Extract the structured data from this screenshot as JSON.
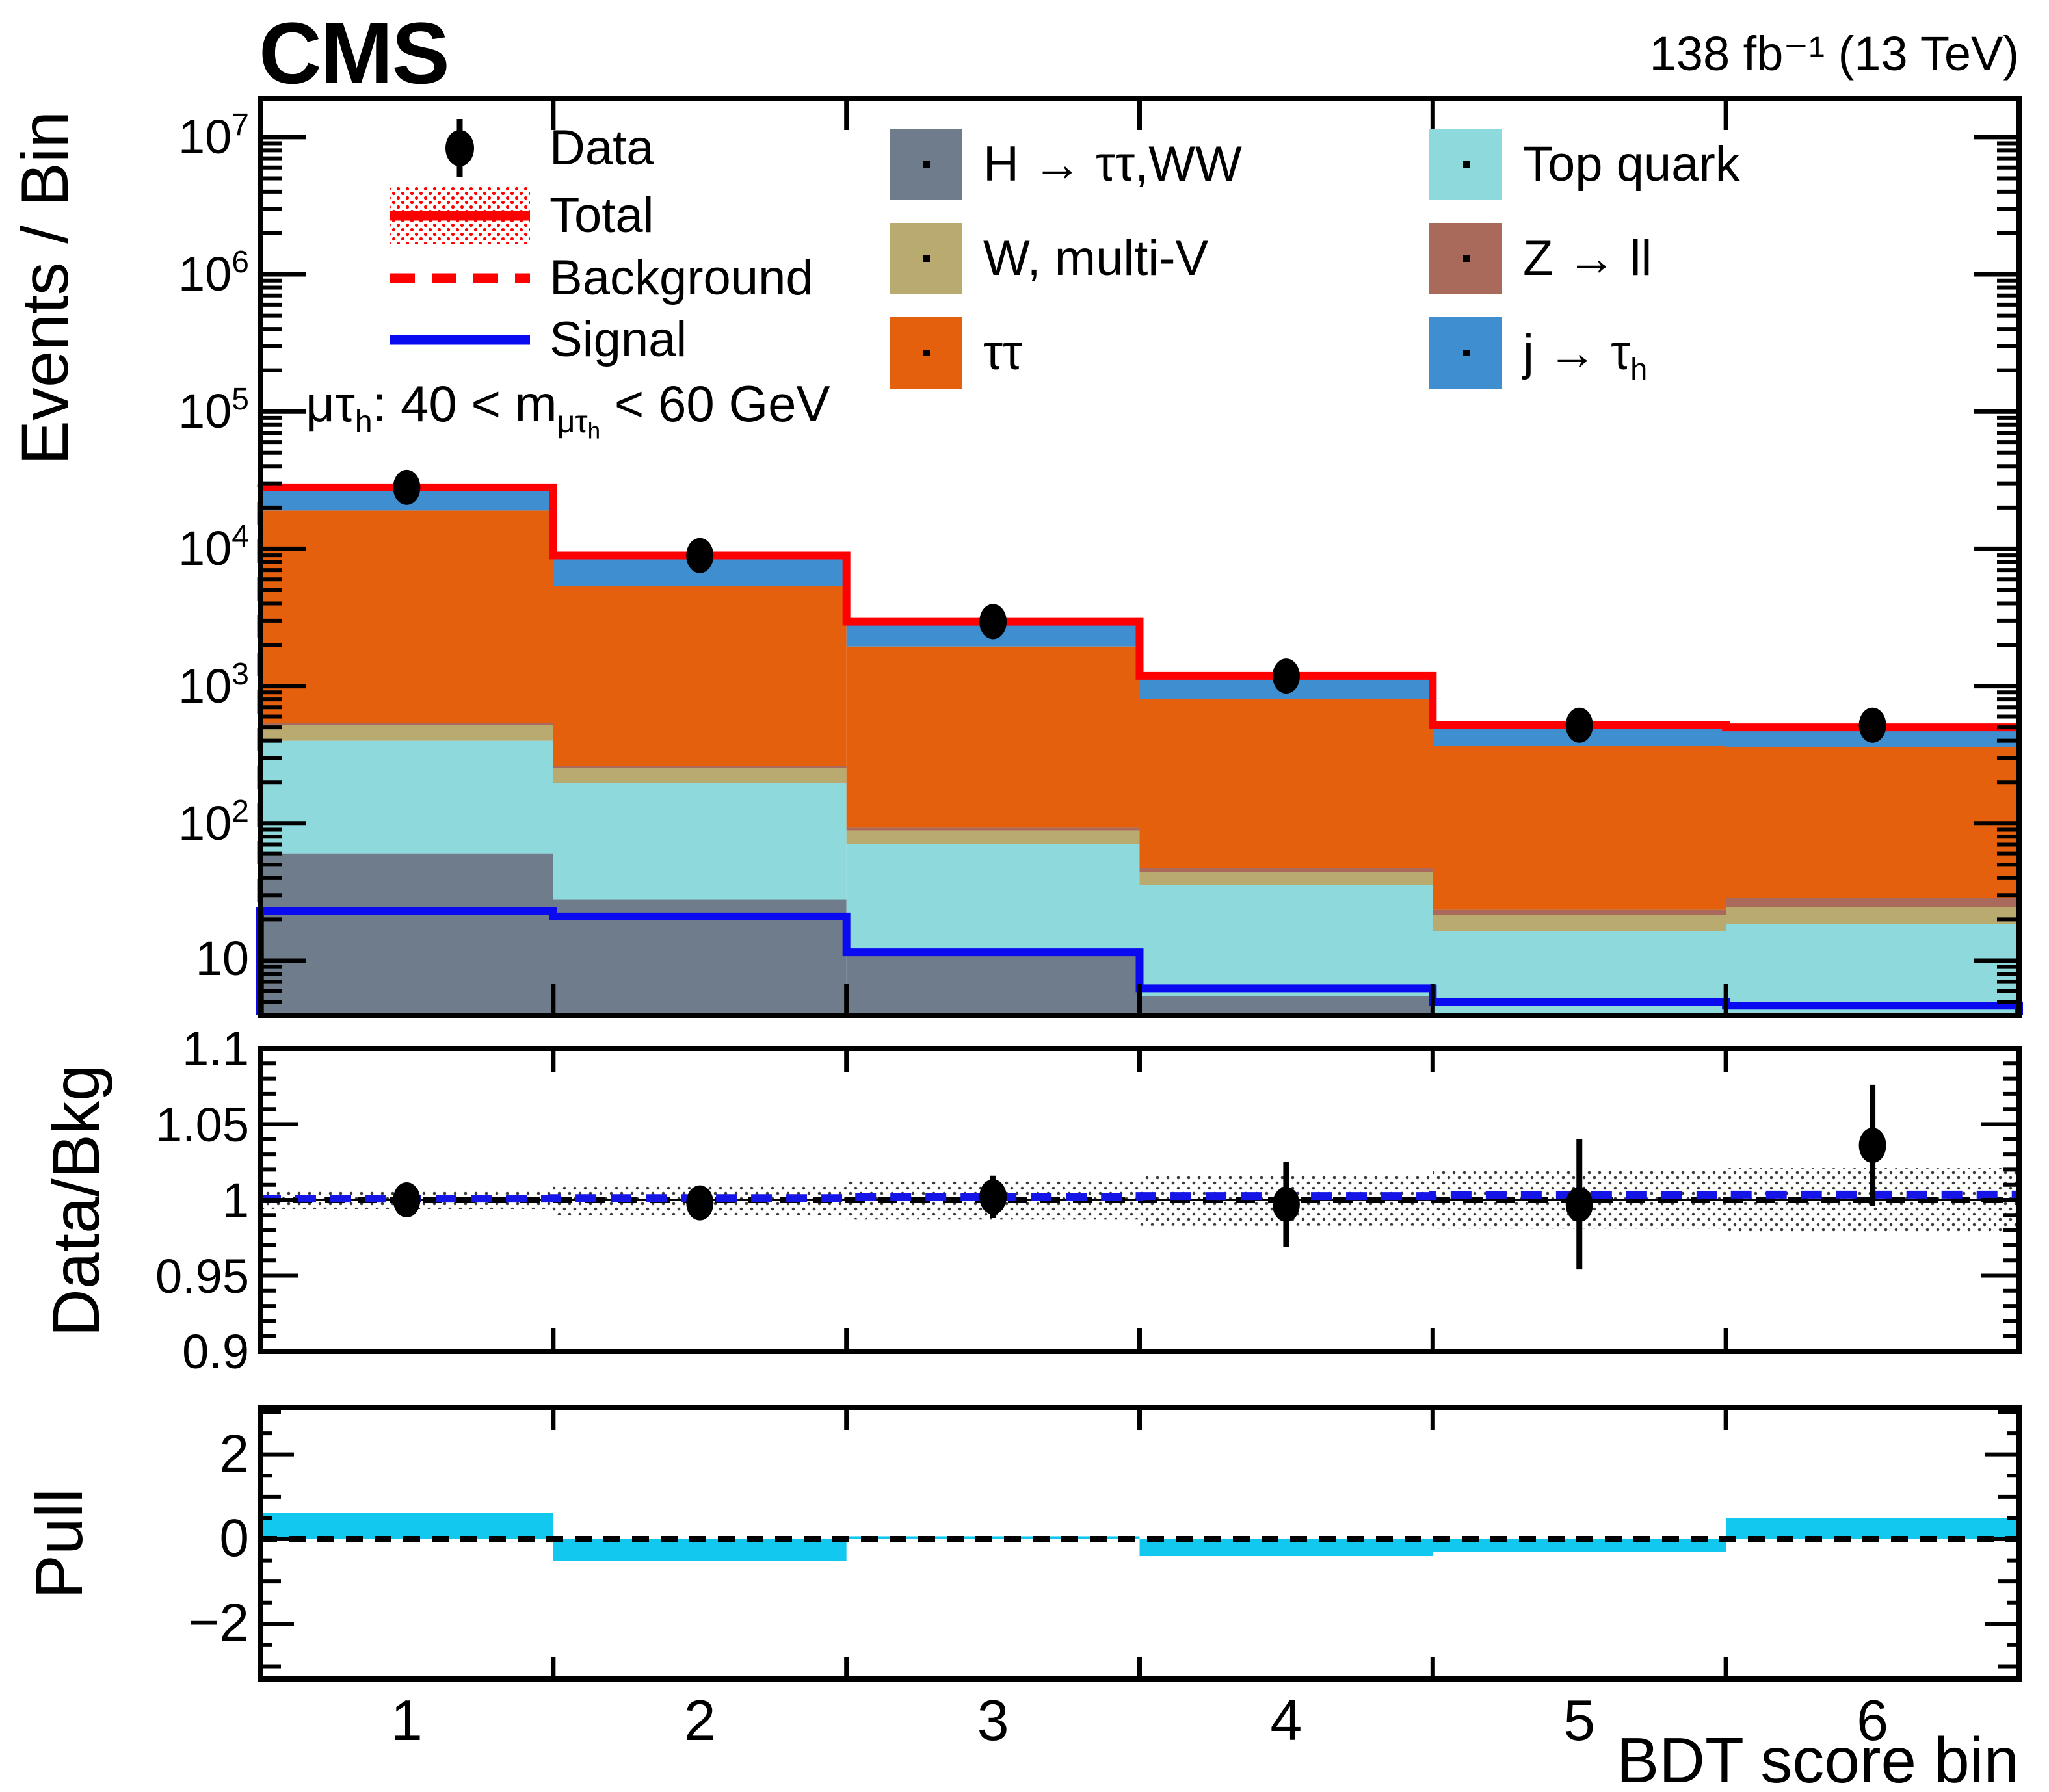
{
  "header": {
    "experiment": "CMS",
    "lumi": "138 fb⁻¹ (13 TeV)"
  },
  "annotation": {
    "segments": [
      {
        "t": "μτ"
      },
      {
        "t": "h",
        "lvl": "sub"
      },
      {
        "t": ": 40 < m"
      },
      {
        "t": "μτ",
        "lvl": "sub"
      },
      {
        "t": "h",
        "lvl": "sub2"
      },
      {
        "t": " < 60 GeV"
      }
    ]
  },
  "legend": {
    "column1": [
      {
        "id": "data",
        "type": "point",
        "label": [
          {
            "t": "Data"
          }
        ],
        "color": "#000000"
      },
      {
        "id": "total",
        "type": "band-line",
        "label": [
          {
            "t": "Total"
          }
        ],
        "color": "#ff0000"
      },
      {
        "id": "background",
        "type": "dashed-line",
        "label": [
          {
            "t": "Background"
          }
        ],
        "color": "#ff0000"
      },
      {
        "id": "signal",
        "type": "line",
        "label": [
          {
            "t": "Signal"
          }
        ],
        "color": "#0a0af0"
      }
    ],
    "column2": [
      "higgs",
      "wmultiv",
      "tautau"
    ],
    "column3": [
      "top",
      "zll",
      "jtau"
    ]
  },
  "chart_data": {
    "type": "stacked-step-histogram with ratio and pull panels",
    "x": {
      "label": "BDT score bin",
      "n_bins": 6,
      "tick_labels": [
        "1",
        "2",
        "3",
        "4",
        "5",
        "6"
      ]
    },
    "main": {
      "ylabel": "Events / Bin",
      "yscale": "log",
      "ylim": [
        4,
        19000000
      ],
      "y_ticks": [
        {
          "label": "10",
          "exp": "7",
          "value": 10000000
        },
        {
          "label": "10",
          "exp": "6",
          "value": 1000000
        },
        {
          "label": "10",
          "exp": "5",
          "value": 100000
        },
        {
          "label": "10",
          "exp": "4",
          "value": 10000
        },
        {
          "label": "10",
          "exp": "3",
          "value": 1000
        },
        {
          "label": "10",
          "exp": "2",
          "value": 100
        },
        {
          "label": "10",
          "exp": "",
          "value": 10
        }
      ],
      "stack_order": [
        "higgs",
        "top",
        "wmultiv",
        "zll",
        "tautau",
        "jtau"
      ],
      "stacks": {
        "higgs": {
          "label": [
            {
              "t": "H → ττ,WW"
            }
          ],
          "color": "#6e7c8c",
          "values": [
            60,
            28,
            11,
            5.5,
            2.5,
            2.5
          ]
        },
        "top": {
          "label": [
            {
              "t": "Top quark"
            }
          ],
          "color": "#8ed9dc",
          "values": [
            340,
            170,
            60,
            30,
            14,
            16
          ]
        },
        "wmultiv": {
          "label": [
            {
              "t": "W, multi-V"
            }
          ],
          "color": "#b9ab6f",
          "values": [
            120,
            55,
            18,
            9,
            5,
            6
          ]
        },
        "zll": {
          "label": [
            {
              "t": "Z → ll"
            }
          ],
          "color": "#a96a5b",
          "values": [
            15,
            8,
            4,
            2.5,
            2,
            4
          ]
        },
        "tautau": {
          "label": [
            {
              "t": "ττ"
            }
          ],
          "color": "#e5600d",
          "values": [
            18500,
            5100,
            1850,
            760,
            345,
            330
          ]
        },
        "jtau": {
          "label": [
            {
              "t": "j → τ"
            },
            {
              "t": "h",
              "lvl": "sub"
            }
          ],
          "color": "#3e8ed0",
          "values": [
            9000,
            3600,
            1000,
            380,
            152,
            142
          ]
        }
      },
      "total_color": "#ff0000",
      "background_color": "#ff0000",
      "signal": {
        "color": "#0a0af0",
        "values": [
          23,
          21,
          11.5,
          6.3,
          5.0,
          4.7
        ]
      },
      "data_points": [
        28040,
        8940,
        2950,
        1184,
        519,
        519
      ]
    },
    "ratio": {
      "ylabel": "Data/Bkg",
      "ylim": [
        0.9,
        1.1
      ],
      "y_ticks": [
        {
          "label": "1.1",
          "value": 1.1
        },
        {
          "label": "1.05",
          "value": 1.05
        },
        {
          "label": "1",
          "value": 1.0
        },
        {
          "label": "0.95",
          "value": 0.95
        },
        {
          "label": "0.9",
          "value": 0.9
        }
      ],
      "points": [
        1.0,
        0.998,
        1.002,
        0.997,
        0.997,
        1.036
      ],
      "errors": [
        0.006,
        0.01,
        0.014,
        0.028,
        0.043,
        0.04
      ],
      "band_halfwidth": [
        0.006,
        0.01,
        0.013,
        0.017,
        0.019,
        0.021
      ],
      "signal_plus_bkg_over_bkg": [
        1.0008,
        1.0012,
        1.002,
        1.0025,
        1.003,
        1.0035
      ],
      "reference_line": 1.0
    },
    "pull": {
      "ylabel": "Pull",
      "ylim": [
        -3.3,
        3.1
      ],
      "y_ticks": [
        {
          "label": "2",
          "value": 2
        },
        {
          "label": "0",
          "value": 0
        },
        {
          "label": "−2",
          "value": -2
        }
      ],
      "values": [
        0.62,
        -0.52,
        0.07,
        -0.4,
        -0.3,
        0.5
      ],
      "bar_color": "#12c8ef",
      "reference_line": 0
    }
  }
}
